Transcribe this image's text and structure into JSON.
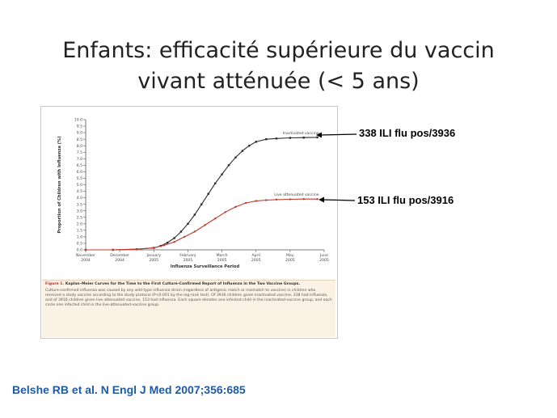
{
  "slide": {
    "title_line1": "Enfants: efficacité supérieure du vaccin",
    "title_line2": "vivant atténuée (< 5 ans)"
  },
  "annotations": {
    "inactivated": "338 ILI flu pos/3936",
    "live": "153 ILI flu pos/3916"
  },
  "citation": "Belshe RB et al. N Engl J Med 2007;356:685",
  "colors": {
    "inactivated_series": "#2b2b2b",
    "live_series": "#c0392b",
    "citation": "#1f5aa8",
    "caption_background": "#fbf1e4"
  },
  "caption": {
    "figure_label": "Figure 1.",
    "heading": "Kaplan–Meier Curves for the Time to the First Culture-Confirmed Report of Influenza in the Two Vaccine Groups.",
    "body": "Culture-confirmed influenza was caused by any wild-type influenza strain (regardless of antigenic match or mismatch to vaccine) in children who received a study vaccine according to the study protocol (P<0.001 by the log-rank test). Of 3936 children given inactivated vaccine, 338 had influenza, and of 3916 children given live attenuated vaccine, 153 had influenza. Each square denotes one infected child in the inactivated-vaccine group, and each circle one infected child in the live-attenuated-vaccine group."
  },
  "chart_data": {
    "type": "line",
    "ylabel": "Proportion of Children with Influenza (%)",
    "xlabel": "Influenza Surveillance Period",
    "ylim": [
      0,
      10
    ],
    "yticks": [
      "0.0",
      "0.5",
      "1.0",
      "1.5",
      "2.0",
      "2.5",
      "3.0",
      "3.5",
      "4.0",
      "4.5",
      "5.0",
      "5.5",
      "6.0",
      "6.5",
      "7.0",
      "7.5",
      "8.0",
      "8.5",
      "9.0",
      "9.5",
      "10.0"
    ],
    "xticks": [
      {
        "month": "November",
        "year": "2004"
      },
      {
        "month": "December",
        "year": "2004"
      },
      {
        "month": "January",
        "year": "2005"
      },
      {
        "month": "February",
        "year": "2005"
      },
      {
        "month": "March",
        "year": "2005"
      },
      {
        "month": "April",
        "year": "2005"
      },
      {
        "month": "May",
        "year": "2005"
      },
      {
        "month": "June",
        "year": "2005"
      }
    ],
    "grid": false,
    "series": [
      {
        "name": "Inactivated vaccine",
        "x": [
          0,
          0.8,
          1.5,
          2.0,
          2.2,
          2.4,
          2.6,
          2.8,
          3.0,
          3.2,
          3.4,
          3.6,
          3.8,
          4.0,
          4.2,
          4.4,
          4.6,
          4.8,
          5.0,
          5.3,
          5.6,
          6.0,
          6.4,
          6.8
        ],
        "y": [
          0,
          0,
          0.05,
          0.15,
          0.3,
          0.55,
          0.9,
          1.4,
          2.0,
          2.7,
          3.5,
          4.3,
          5.1,
          5.8,
          6.5,
          7.1,
          7.6,
          8.0,
          8.3,
          8.5,
          8.55,
          8.6,
          8.62,
          8.64
        ]
      },
      {
        "name": "Live attenuated vaccine",
        "x": [
          0,
          0.8,
          1.5,
          2.0,
          2.3,
          2.6,
          2.9,
          3.2,
          3.5,
          3.8,
          4.1,
          4.4,
          4.7,
          5.0,
          5.3,
          5.6,
          6.0,
          6.4,
          6.8
        ],
        "y": [
          0,
          0,
          0.05,
          0.15,
          0.35,
          0.6,
          1.0,
          1.4,
          1.9,
          2.4,
          2.9,
          3.3,
          3.6,
          3.75,
          3.82,
          3.86,
          3.88,
          3.9,
          3.9
        ]
      }
    ]
  }
}
